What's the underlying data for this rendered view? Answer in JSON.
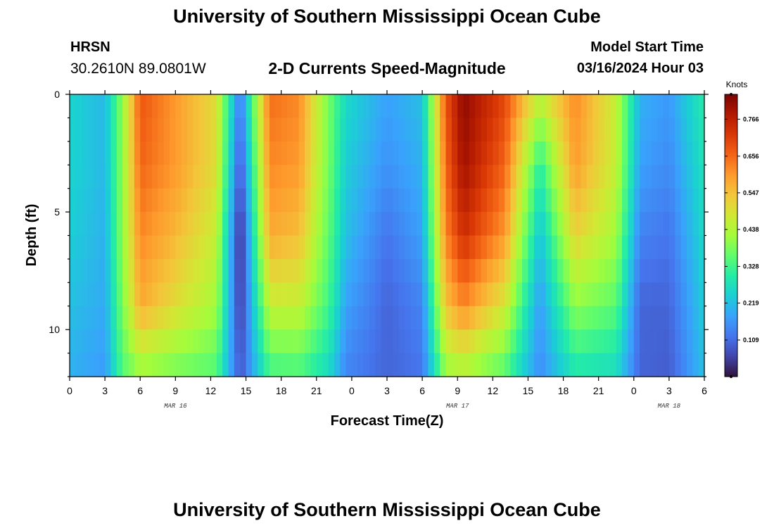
{
  "header": {
    "title": "University of Southern Mississippi Ocean Cube",
    "station": "HRSN",
    "coordinates": "30.2610N  89.0801W",
    "plot_title": "2-D Currents Speed-Magnitude",
    "model_start_label": "Model Start Time",
    "model_start_value": "03/16/2024 Hour 03"
  },
  "footer": {
    "title": "University of Southern Mississippi Ocean Cube"
  },
  "chart_data": {
    "type": "heatmap",
    "title": "2-D Currents Speed-Magnitude",
    "xlabel": "Forecast Time(Z)",
    "ylabel": "Depth (ft)",
    "colorbar_label": "Knots",
    "colorbar_ticks": [
      "0.766",
      "0.656",
      "0.547",
      "0.438",
      "0.328",
      "0.219",
      "0.109"
    ],
    "color_range": [
      0,
      0.84
    ],
    "colormap": [
      "#30123b",
      "#4145ab",
      "#4675ed",
      "#39a2fc",
      "#1bcfd4",
      "#24eca6",
      "#61fc6c",
      "#a4fc3b",
      "#d1e834",
      "#f3c63a",
      "#fe9b2d",
      "#f36315",
      "#d93806",
      "#b11901",
      "#7a0403"
    ],
    "x_range_hours": [
      0,
      54
    ],
    "x_tick_labels": [
      "0",
      "3",
      "6",
      "9",
      "12",
      "15",
      "18",
      "21",
      "0",
      "3",
      "6",
      "9",
      "12",
      "15",
      "18",
      "21",
      "0",
      "3",
      "6"
    ],
    "date_labels": [
      "MAR 16",
      "MAR 17",
      "MAR 18"
    ],
    "y_range_ft": [
      0,
      12
    ],
    "y_tick_labels": [
      "0",
      "5",
      "10"
    ],
    "anchor_hours": [
      0,
      3,
      4.5,
      6,
      9,
      12.5,
      14.5,
      17,
      19.5,
      22,
      23.5,
      27,
      30,
      32,
      33.5,
      37,
      40,
      43,
      46.5,
      48.5,
      51,
      54
    ],
    "anchor_depths_ft": [
      0,
      3,
      6,
      9,
      12
    ],
    "speed_knots_surface": [
      0.25,
      0.21,
      0.4,
      0.68,
      0.6,
      0.5,
      0.12,
      0.65,
      0.62,
      0.38,
      0.26,
      0.18,
      0.22,
      0.68,
      0.82,
      0.7,
      0.46,
      0.62,
      0.46,
      0.2,
      0.17,
      0.3
    ],
    "speed_knots_3ft": [
      0.25,
      0.21,
      0.4,
      0.66,
      0.6,
      0.5,
      0.07,
      0.62,
      0.6,
      0.38,
      0.24,
      0.16,
      0.2,
      0.66,
      0.8,
      0.66,
      0.3,
      0.6,
      0.46,
      0.18,
      0.15,
      0.28
    ],
    "speed_knots_6ft": [
      0.24,
      0.2,
      0.4,
      0.62,
      0.56,
      0.46,
      0.02,
      0.58,
      0.55,
      0.36,
      0.22,
      0.12,
      0.18,
      0.62,
      0.74,
      0.6,
      0.22,
      0.52,
      0.42,
      0.14,
      0.12,
      0.26
    ],
    "speed_knots_9ft": [
      0.22,
      0.19,
      0.38,
      0.58,
      0.5,
      0.42,
      0.04,
      0.46,
      0.46,
      0.33,
      0.18,
      0.1,
      0.14,
      0.54,
      0.62,
      0.48,
      0.17,
      0.4,
      0.35,
      0.1,
      0.1,
      0.24
    ],
    "speed_knots_12ft": [
      0.2,
      0.17,
      0.34,
      0.4,
      0.37,
      0.34,
      0.08,
      0.32,
      0.33,
      0.26,
      0.14,
      0.1,
      0.12,
      0.4,
      0.42,
      0.34,
      0.15,
      0.28,
      0.26,
      0.1,
      0.09,
      0.22
    ]
  }
}
